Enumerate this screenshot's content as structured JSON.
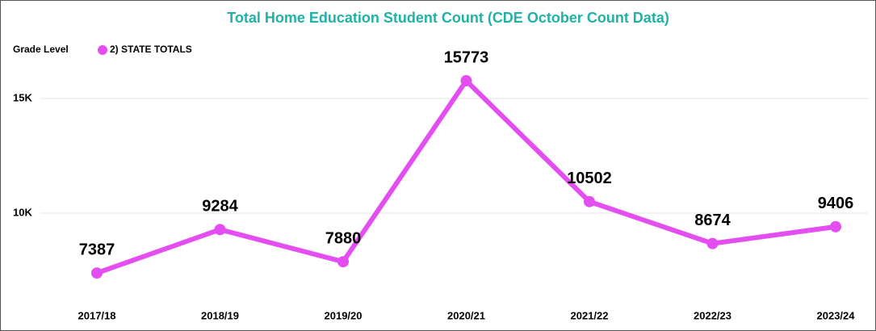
{
  "chart_data": {
    "type": "line",
    "title": "Total Home Education Student Count (CDE October Count Data)",
    "legend_title": "Grade Level",
    "categories": [
      "2017/18",
      "2018/19",
      "2019/20",
      "2020/21",
      "2021/22",
      "2022/23",
      "2023/24"
    ],
    "series": [
      {
        "name": "2) STATE TOTALS",
        "color": "#e44df0",
        "values": [
          7387,
          9284,
          7880,
          15773,
          10502,
          8674,
          9406
        ]
      }
    ],
    "ylim": [
      6200,
      16000
    ],
    "yticks": [
      {
        "value": 10000,
        "label": "10K"
      },
      {
        "value": 15000,
        "label": "15K"
      }
    ],
    "grid": true,
    "legend": "top-left",
    "title_color": "#20b2a6"
  }
}
